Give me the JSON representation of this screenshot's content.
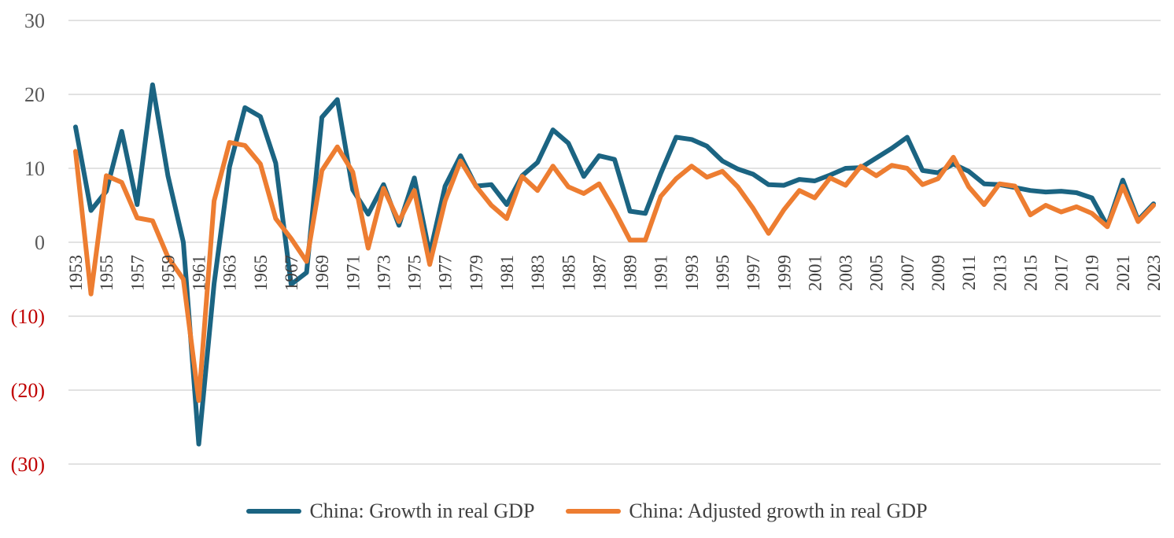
{
  "chart_data": {
    "type": "line",
    "title": "",
    "xlabel": "",
    "ylabel": "",
    "ylim": [
      -30,
      30
    ],
    "y_ticks": [
      {
        "value": 30,
        "label": "30",
        "color": "#595959"
      },
      {
        "value": 20,
        "label": "20",
        "color": "#595959"
      },
      {
        "value": 10,
        "label": "10",
        "color": "#595959"
      },
      {
        "value": 0,
        "label": "0",
        "color": "#595959"
      },
      {
        "value": -10,
        "label": "(10)",
        "color": "#c00000"
      },
      {
        "value": -20,
        "label": "(20)",
        "color": "#c00000"
      },
      {
        "value": -30,
        "label": "(30)",
        "color": "#c00000"
      }
    ],
    "grid": true,
    "legend_position": "bottom",
    "x": [
      1953,
      1954,
      1955,
      1956,
      1957,
      1958,
      1959,
      1960,
      1961,
      1962,
      1963,
      1964,
      1965,
      1966,
      1967,
      1968,
      1969,
      1970,
      1971,
      1972,
      1973,
      1974,
      1975,
      1976,
      1977,
      1978,
      1979,
      1980,
      1981,
      1982,
      1983,
      1984,
      1985,
      1986,
      1987,
      1988,
      1989,
      1990,
      1991,
      1992,
      1993,
      1994,
      1995,
      1996,
      1997,
      1998,
      1999,
      2000,
      2001,
      2002,
      2003,
      2004,
      2005,
      2006,
      2007,
      2008,
      2009,
      2010,
      2011,
      2012,
      2013,
      2014,
      2015,
      2016,
      2017,
      2018,
      2019,
      2020,
      2021,
      2022,
      2023
    ],
    "x_tick_labels": [
      "1953",
      "1955",
      "1957",
      "1959",
      "1961",
      "1963",
      "1965",
      "1967",
      "1969",
      "1971",
      "1973",
      "1975",
      "1977",
      "1979",
      "1981",
      "1983",
      "1985",
      "1987",
      "1989",
      "1991",
      "1993",
      "1995",
      "1997",
      "1999",
      "2001",
      "2003",
      "2005",
      "2007",
      "2009",
      "2011",
      "2013",
      "2015",
      "2017",
      "2019",
      "2021",
      "2023"
    ],
    "series": [
      {
        "name": "China: Growth in real GDP",
        "color": "#1b6482",
        "values": [
          15.6,
          4.3,
          6.9,
          15.0,
          5.1,
          21.3,
          9.0,
          0.0,
          -27.3,
          -5.6,
          10.2,
          18.2,
          17.0,
          10.7,
          -5.7,
          -4.1,
          16.9,
          19.3,
          7.1,
          3.8,
          7.8,
          2.3,
          8.7,
          -1.6,
          7.6,
          11.7,
          7.6,
          7.8,
          5.1,
          9.0,
          10.8,
          15.2,
          13.4,
          8.9,
          11.7,
          11.2,
          4.2,
          3.9,
          9.3,
          14.2,
          13.9,
          13.0,
          11.0,
          9.9,
          9.2,
          7.8,
          7.7,
          8.5,
          8.3,
          9.1,
          10.0,
          10.1,
          11.4,
          12.7,
          14.2,
          9.7,
          9.4,
          10.6,
          9.6,
          7.9,
          7.8,
          7.4,
          7.0,
          6.8,
          6.9,
          6.7,
          6.0,
          2.2,
          8.4,
          3.0,
          5.2
        ]
      },
      {
        "name": "China: Adjusted growth in real GDP",
        "color": "#ed7d31",
        "values": [
          12.3,
          -7.0,
          9.0,
          8.1,
          3.3,
          2.9,
          -2.0,
          -5.0,
          -21.4,
          5.6,
          13.5,
          13.1,
          10.6,
          3.2,
          0.5,
          -2.6,
          9.7,
          12.9,
          9.5,
          -0.8,
          7.3,
          2.8,
          7.0,
          -3.0,
          5.6,
          11.0,
          7.6,
          5.0,
          3.2,
          8.9,
          7.0,
          10.3,
          7.5,
          6.6,
          7.9,
          4.3,
          0.3,
          0.3,
          6.2,
          8.6,
          10.3,
          8.8,
          9.6,
          7.5,
          4.6,
          1.2,
          4.4,
          7.0,
          6.0,
          8.7,
          7.7,
          10.3,
          9.0,
          10.4,
          10.0,
          7.8,
          8.6,
          11.5,
          7.5,
          5.1,
          7.9,
          7.6,
          3.7,
          5.0,
          4.1,
          4.8,
          3.9,
          2.1,
          7.6,
          2.8,
          5.0
        ]
      }
    ]
  }
}
